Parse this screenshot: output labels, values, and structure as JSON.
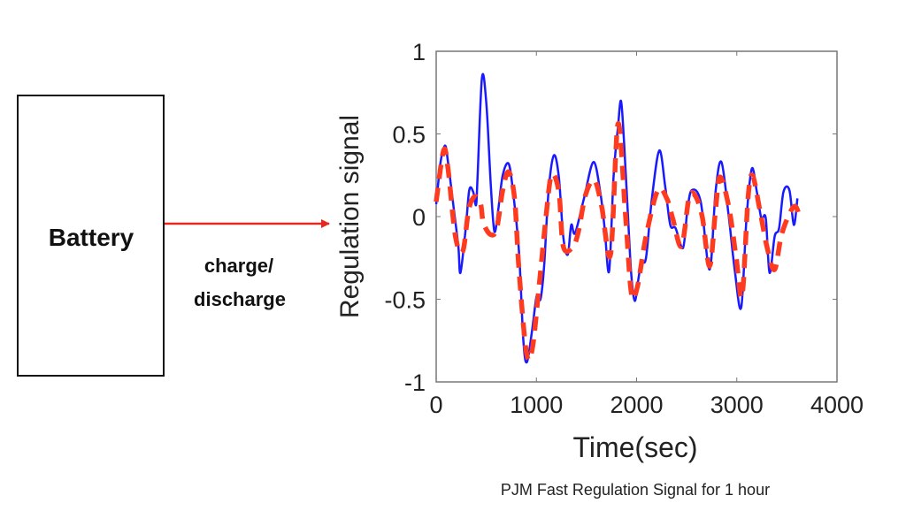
{
  "diagram": {
    "battery_label": "Battery",
    "arrow_label_line1": "charge/",
    "arrow_label_line2": "discharge",
    "arrow_color": "#e8281e",
    "caption": "PJM Fast Regulation Signal for 1 hour"
  },
  "chart_data": {
    "type": "line",
    "xlabel": "Time(sec)",
    "ylabel": "Regulation signal",
    "xlim": [
      0,
      4000
    ],
    "ylim": [
      -1,
      1
    ],
    "xticks": [
      "0",
      "1000",
      "2000",
      "3000",
      "4000"
    ],
    "yticks": [
      "1",
      "0.5",
      "0",
      "-0.5",
      "-1"
    ],
    "grid": false,
    "series": [
      {
        "style": "solid",
        "color": "#1a1aff",
        "x": [
          0,
          44,
          88,
          118,
          177,
          221,
          242,
          295,
          330,
          369,
          398,
          413,
          457,
          501,
          546,
          581,
          619,
          664,
          723,
          767,
          826,
          870,
          906,
          959,
          1003,
          1041,
          1077,
          1121,
          1174,
          1224,
          1268,
          1313,
          1348,
          1386,
          1475,
          1569,
          1637,
          1681,
          1726,
          1770,
          1814,
          1844,
          1873,
          1917,
          1947,
          1982,
          2020,
          2050,
          2094,
          2153,
          2227,
          2286,
          2336,
          2389,
          2463,
          2507,
          2551,
          2640,
          2729,
          2788,
          2847,
          2920,
          2979,
          3044,
          3097,
          3150,
          3200,
          3245,
          3289,
          3327,
          3378,
          3422,
          3466,
          3525,
          3569,
          3605
        ],
        "y": [
          0.075,
          0.33,
          0.43,
          0.33,
          0.04,
          -0.18,
          -0.34,
          -0.07,
          0.16,
          0.15,
          0.07,
          0.24,
          0.84,
          0.68,
          0.18,
          -0.09,
          0.04,
          0.25,
          0.32,
          0.15,
          -0.21,
          -0.75,
          -0.88,
          -0.68,
          -0.48,
          -0.5,
          -0.3,
          0.15,
          0.37,
          0.24,
          -0.12,
          -0.23,
          -0.05,
          -0.1,
          0.11,
          0.33,
          0.15,
          -0.07,
          -0.33,
          0.24,
          0.54,
          0.7,
          0.47,
          -0.03,
          -0.35,
          -0.51,
          -0.37,
          -0.27,
          -0.25,
          0.11,
          0.4,
          0.18,
          -0.05,
          -0.07,
          -0.19,
          0.04,
          0.16,
          0.09,
          -0.32,
          0.15,
          0.33,
          0.0,
          -0.32,
          -0.55,
          -0.01,
          0.29,
          0.15,
          -0.01,
          -0.01,
          -0.34,
          -0.12,
          -0.07,
          0.15,
          0.16,
          -0.05,
          0.11
        ]
      },
      {
        "style": "dashed",
        "color": "#ff3b1f",
        "x": [
          0,
          74,
          118,
          192,
          265,
          324,
          383,
          442,
          472,
          546,
          605,
          664,
          723,
          782,
          826,
          900,
          959,
          1032,
          1091,
          1150,
          1224,
          1268,
          1357,
          1416,
          1490,
          1578,
          1652,
          1740,
          1814,
          1888,
          1947,
          2006,
          2094,
          2212,
          2301,
          2360,
          2448,
          2522,
          2581,
          2655,
          2729,
          2788,
          2832,
          2920,
          2994,
          3053,
          3112,
          3156,
          3230,
          3304,
          3378,
          3451,
          3569,
          3628
        ],
        "y": [
          0.09,
          0.4,
          0.29,
          -0.12,
          -0.21,
          0.04,
          0.12,
          0.08,
          -0.04,
          -0.11,
          -0.07,
          0.16,
          0.27,
          0.11,
          -0.32,
          -0.82,
          -0.8,
          -0.39,
          -0.03,
          0.25,
          0.15,
          -0.18,
          -0.19,
          -0.1,
          0.13,
          0.22,
          0.06,
          -0.23,
          0.56,
          0.02,
          -0.46,
          -0.43,
          -0.12,
          0.16,
          0.11,
          -0.01,
          -0.18,
          0.11,
          0.13,
          0.0,
          -0.3,
          0.04,
          0.24,
          0.06,
          -0.25,
          -0.48,
          0.11,
          0.25,
          0.04,
          -0.19,
          -0.32,
          -0.1,
          0.06,
          0.0
        ]
      }
    ]
  }
}
